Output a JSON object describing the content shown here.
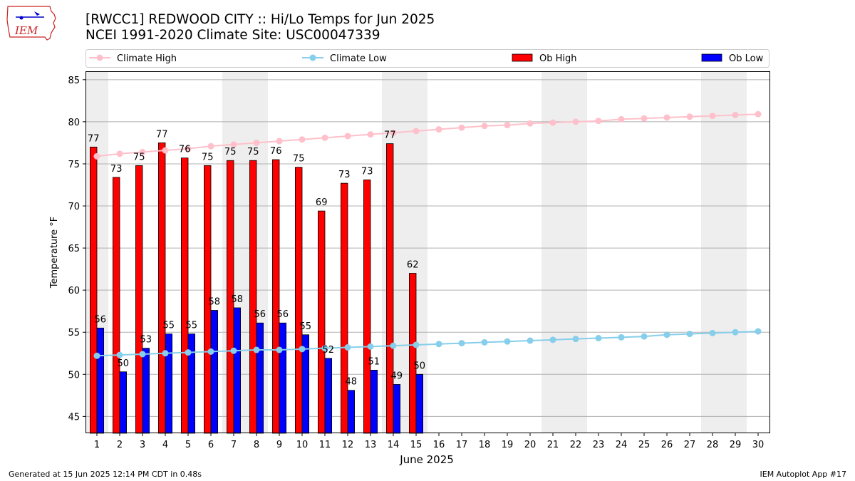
{
  "header": {
    "title_line1": "[RWCC1] REDWOOD CITY :: Hi/Lo Temps for Jun 2025",
    "title_line2": "NCEI 1991-2020 Climate Site: USC00047339",
    "logo_text": "IEM"
  },
  "footer": {
    "generated": "Generated at 15 Jun 2025 12:14 PM CDT in 0.48s",
    "app": "IEM Autoplot App #17"
  },
  "colors": {
    "climate_high": "#ffc0cb",
    "climate_low": "#87ceeb",
    "ob_high": "#ff0000",
    "ob_low": "#0000ff",
    "weekend_shade": "#eeeeee",
    "grid": "#b0b0b0"
  },
  "chart_data": {
    "type": "bar",
    "xlabel": "June 2025",
    "ylabel": "Temperature °F",
    "ylim": [
      43,
      86
    ],
    "xlim": [
      0.5,
      30.5
    ],
    "yticks": [
      45,
      50,
      55,
      60,
      65,
      70,
      75,
      80,
      85
    ],
    "days": [
      1,
      2,
      3,
      4,
      5,
      6,
      7,
      8,
      9,
      10,
      11,
      12,
      13,
      14,
      15,
      16,
      17,
      18,
      19,
      20,
      21,
      22,
      23,
      24,
      25,
      26,
      27,
      28,
      29,
      30
    ],
    "weekend_ranges": [
      [
        0.5,
        1.5
      ],
      [
        6.5,
        8.5
      ],
      [
        13.5,
        15.5
      ],
      [
        20.5,
        22.5
      ],
      [
        27.5,
        29.5
      ]
    ],
    "grid": true,
    "legend_position": "top",
    "legend": [
      "Climate High",
      "Climate Low",
      "Ob High",
      "Ob Low"
    ],
    "ob_high": {
      "name": "Ob High",
      "values": [
        77,
        73.4,
        74.8,
        77.5,
        75.7,
        74.8,
        75.4,
        75.4,
        75.5,
        74.6,
        69.4,
        72.7,
        73.1,
        77.4,
        62
      ]
    },
    "ob_high_labels": [
      "77",
      "73",
      "75",
      "77",
      "76",
      "75",
      "75",
      "75",
      "76",
      "75",
      "69",
      "73",
      "73",
      "77",
      "62"
    ],
    "ob_low": {
      "name": "Ob Low",
      "values": [
        55.5,
        50.3,
        53.1,
        54.8,
        54.8,
        57.6,
        57.9,
        56.1,
        56.1,
        54.7,
        51.9,
        48.1,
        50.5,
        48.8,
        50
      ]
    },
    "ob_low_labels": [
      "56",
      "50",
      "53",
      "55",
      "55",
      "58",
      "58",
      "56",
      "56",
      "55",
      "52",
      "48",
      "51",
      "49",
      "50"
    ],
    "climate_high": {
      "name": "Climate High",
      "values": [
        75.9,
        76.2,
        76.4,
        76.6,
        76.8,
        77.1,
        77.3,
        77.5,
        77.7,
        77.9,
        78.1,
        78.3,
        78.5,
        78.7,
        78.9,
        79.1,
        79.3,
        79.5,
        79.6,
        79.8,
        79.9,
        80.0,
        80.1,
        80.3,
        80.4,
        80.5,
        80.6,
        80.7,
        80.8,
        80.9
      ]
    },
    "climate_low": {
      "name": "Climate Low",
      "values": [
        52.2,
        52.3,
        52.4,
        52.5,
        52.6,
        52.7,
        52.8,
        52.9,
        52.9,
        53.0,
        53.1,
        53.2,
        53.3,
        53.4,
        53.5,
        53.6,
        53.7,
        53.8,
        53.9,
        54.0,
        54.1,
        54.2,
        54.3,
        54.4,
        54.5,
        54.7,
        54.8,
        54.9,
        55.0,
        55.1
      ]
    }
  }
}
